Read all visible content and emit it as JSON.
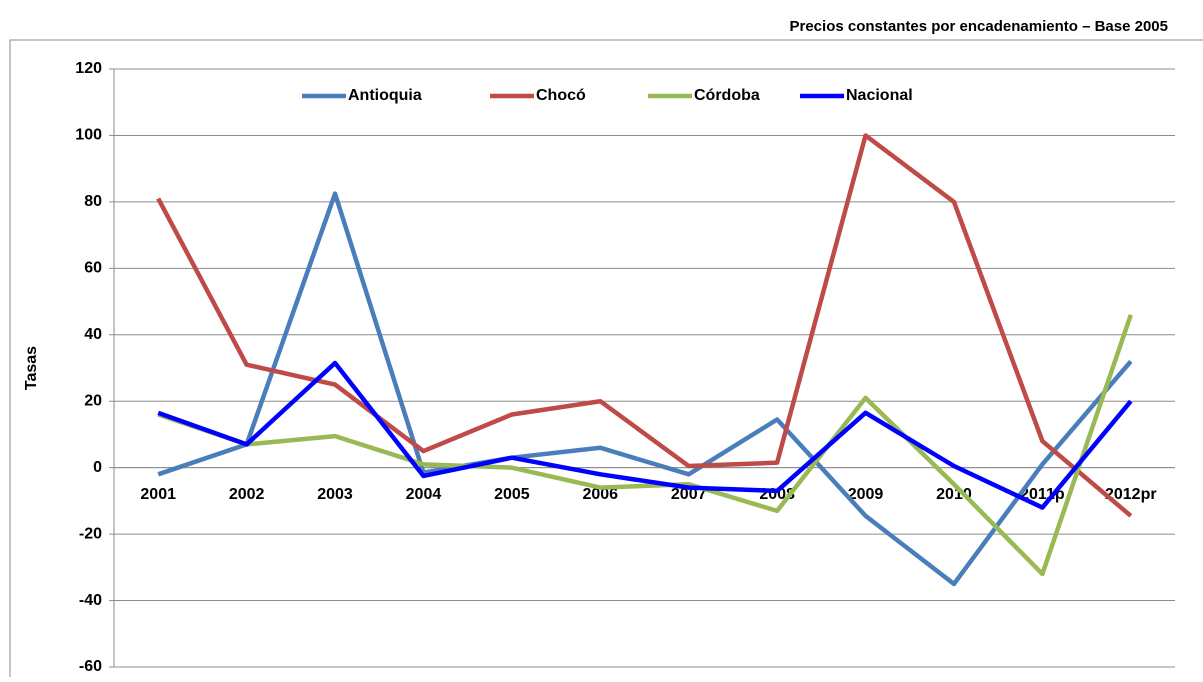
{
  "chart_data": {
    "type": "line",
    "subtitle": "Precios constantes por encadenamiento – Base 2005",
    "y_label": "Tasas",
    "categories": [
      "2001",
      "2002",
      "2003",
      "2004",
      "2005",
      "2006",
      "2007",
      "2008",
      "2009",
      "2010",
      "2011p",
      "2012pr"
    ],
    "series": [
      {
        "name": "Antioquia",
        "color": "#4a7ebb",
        "values": [
          -2,
          7,
          82.5,
          -1.5,
          3,
          6,
          -2,
          14.5,
          -14.5,
          -35,
          1,
          32
        ]
      },
      {
        "name": "Chocó",
        "color": "#be4b48",
        "values": [
          81,
          31,
          25,
          5,
          16,
          20,
          0.5,
          1.5,
          100,
          80,
          8,
          -14.5
        ]
      },
      {
        "name": "Córdoba",
        "color": "#98b954",
        "values": [
          16,
          7,
          9.5,
          1,
          0,
          -6,
          -5,
          -13,
          21,
          -5,
          -32,
          46
        ]
      },
      {
        "name": "Nacional",
        "color": "#0000ff",
        "values": [
          16.5,
          7,
          31.5,
          -2.5,
          3,
          -2,
          -6,
          -7,
          16.5,
          0.5,
          -12,
          20
        ]
      }
    ],
    "ylim": [
      -60,
      120
    ],
    "yticks": [
      -60,
      -40,
      -20,
      0,
      20,
      40,
      60,
      80,
      100,
      120
    ],
    "grid": true,
    "legend": "top"
  }
}
